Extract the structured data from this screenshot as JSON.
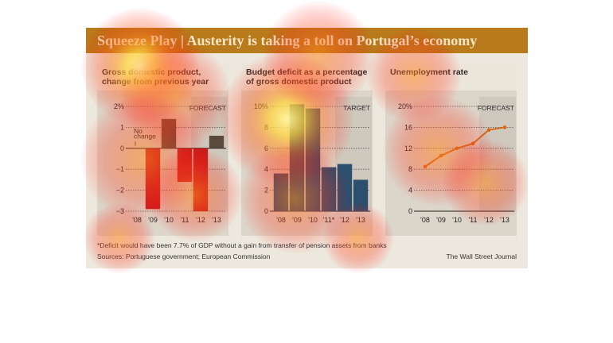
{
  "header": {
    "title": "Squeeze Play | Austerity is taking a toll on Portugal’s economy"
  },
  "footnote": "*Deficit would have been 7.7% of GDP without a gain from transfer of pension assets from banks",
  "sources": "Sources: Portuguese government; European Commission",
  "credit": "The Wall Street Journal",
  "colors": {
    "title_bar": "#b97a1b",
    "negative_bar": "#c81e1e",
    "forecast_bar": "#5a4a3c",
    "deficit_bar": "#2d4f6e",
    "line": "#d46a1a",
    "forecast_band": "#cfc9bd"
  },
  "chart_data": [
    {
      "type": "bar",
      "title": "Gross domestic product, change from previous year",
      "categories": [
        "'08",
        "'09",
        "'10",
        "'11",
        "'12",
        "'13"
      ],
      "values": [
        0,
        -2.9,
        1.4,
        -1.6,
        -3.0,
        0.6
      ],
      "ylim": [
        -3,
        2
      ],
      "yticks": [
        2,
        1,
        0,
        -1,
        -2,
        -3
      ],
      "ytick_labels": [
        "2%",
        "1",
        "0",
        "−1",
        "−2",
        "−3"
      ],
      "annotation": {
        "text_line1": "No",
        "text_line2": "change",
        "category": "'08"
      },
      "band_label": "FORECAST",
      "band_from_index": 4
    },
    {
      "type": "bar",
      "title": "Budget deficit as a percentage of gross domestic product",
      "categories": [
        "'08",
        "'09",
        "'10",
        "'11*",
        "'12",
        "'13"
      ],
      "values": [
        3.6,
        10.2,
        9.8,
        4.2,
        4.5,
        3.0
      ],
      "ylim": [
        0,
        10
      ],
      "yticks": [
        10,
        8,
        6,
        4,
        2,
        0
      ],
      "ytick_labels": [
        "10%",
        "8",
        "6",
        "4",
        "2",
        "0"
      ],
      "band_label": "TARGET",
      "band_from_index": 4
    },
    {
      "type": "line",
      "title": "Unemployment rate",
      "categories": [
        "'08",
        "'09",
        "'10",
        "'11",
        "'12",
        "'13"
      ],
      "values": [
        8.5,
        10.6,
        12.0,
        12.9,
        15.5,
        16.0
      ],
      "ylim": [
        0,
        20
      ],
      "yticks": [
        20,
        16,
        12,
        8,
        4,
        0
      ],
      "ytick_labels": [
        "20%",
        "16",
        "12",
        "8",
        "4",
        "0"
      ],
      "band_label": "FORECAST",
      "band_from_index": 4
    }
  ]
}
